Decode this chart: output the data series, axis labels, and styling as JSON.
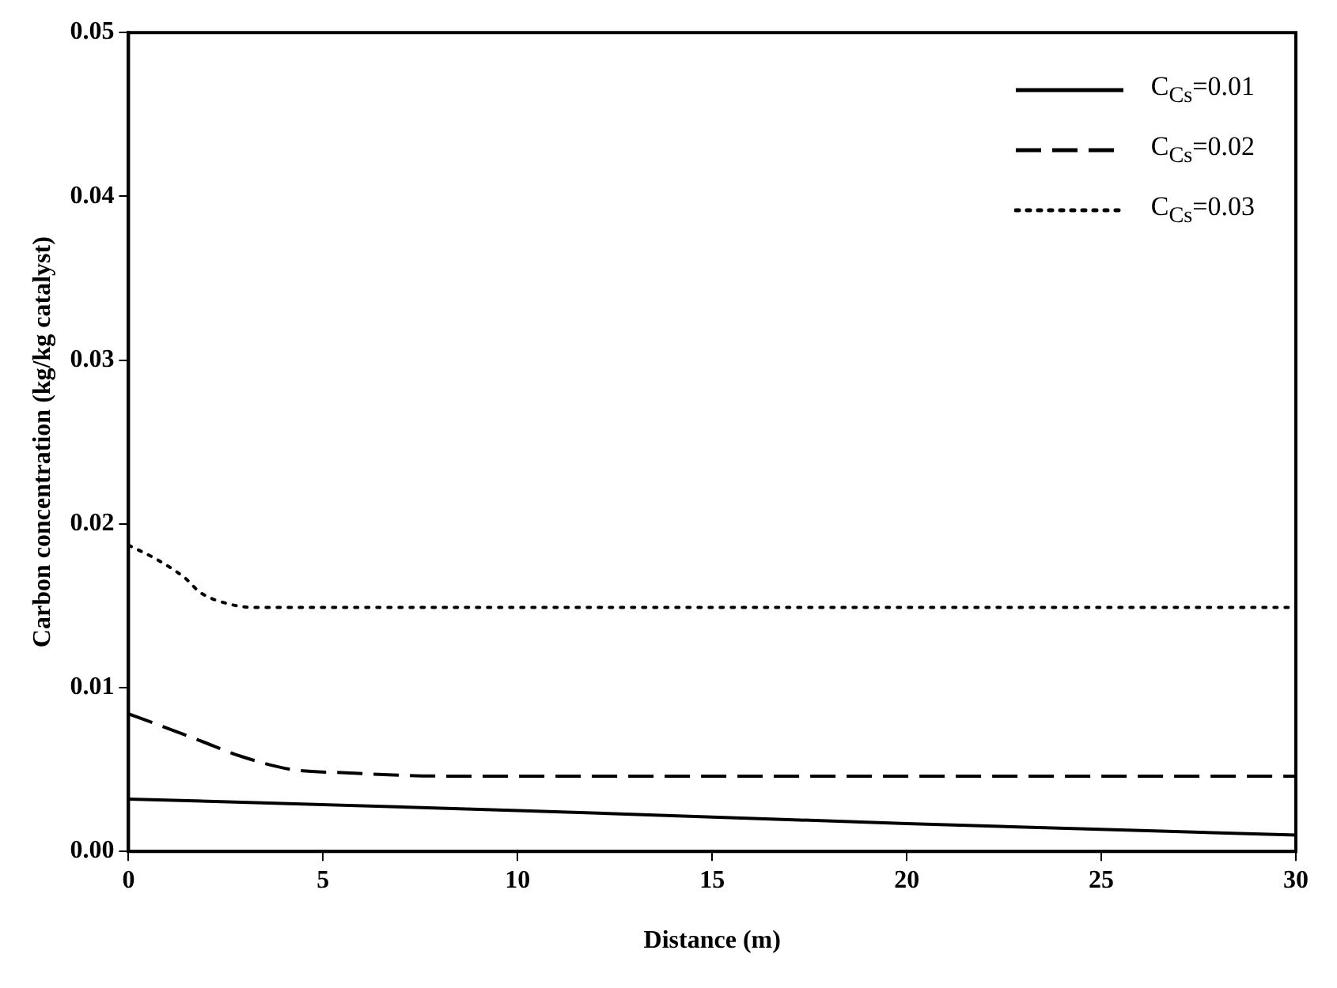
{
  "chart_data": {
    "type": "line",
    "xlabel": "Distance (m)",
    "ylabel": "Carbon concentration (kg/kg catalyst)",
    "xlim": [
      0,
      30
    ],
    "xticks": [
      0,
      5,
      10,
      15,
      20,
      25,
      30
    ],
    "ylim": [
      0,
      0.05
    ],
    "yticks": [
      {
        "value": 0,
        "label": "0.00"
      },
      {
        "value": 0.01,
        "label": "0.01"
      },
      {
        "value": 0.02,
        "label": "0.02"
      },
      {
        "value": 0.03,
        "label": "0.03"
      },
      {
        "value": 0.04,
        "label": "0.04"
      },
      {
        "value": 0.05,
        "label": "0.05"
      }
    ],
    "grid": false,
    "legend": "top right",
    "marker": "none",
    "series": [
      {
        "name": "C$_{Cs}$=0.01",
        "color": "#000000",
        "line_style": "solid",
        "x": [
          0,
          10,
          20,
          30
        ],
        "values": [
          0.0032,
          0.0025,
          0.0017,
          0.001
        ]
      },
      {
        "name": "C$_{Cs}$=0.02",
        "color": "#000000",
        "line_style": "dashed",
        "x": [
          0,
          0.8,
          1.8,
          2.9,
          4.2,
          5.6,
          8,
          30
        ],
        "values": [
          0.0084,
          0.0077,
          0.0068,
          0.0058,
          0.005,
          0.0048,
          0.0046,
          0.0046
        ]
      },
      {
        "name": "C$_{Cs}$=0.03",
        "color": "#000000",
        "line_style": "dotted",
        "x": [
          0,
          0.75,
          1.45,
          1.85,
          2.6,
          3.2,
          30
        ],
        "values": [
          0.0187,
          0.0178,
          0.0167,
          0.0158,
          0.0151,
          0.0149,
          0.0149
        ]
      }
    ]
  }
}
